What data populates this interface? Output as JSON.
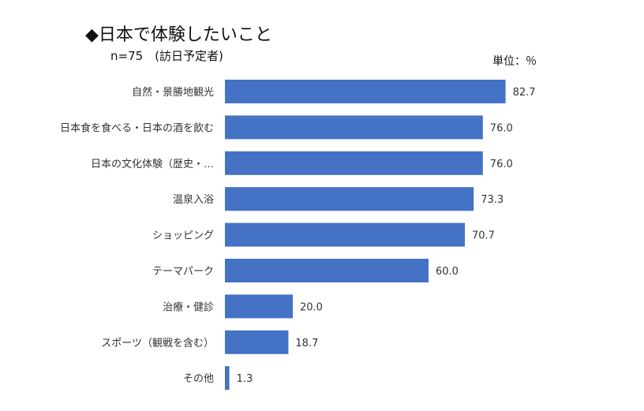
{
  "chart_data": {
    "type": "bar",
    "orientation": "horizontal",
    "title": "◆日本で体験したいこと",
    "subtitle": "n=75　(訪日予定者)",
    "unit": "単位：％",
    "categories": [
      "自然・景勝地観光",
      "日本食を食べる・日本の酒を飲む",
      "日本の文化体験（歴史・…",
      "温泉入浴",
      "ショッピング",
      "テーマパーク",
      "治療・健診",
      "スポーツ（観戦を含む）",
      "その他"
    ],
    "values": [
      82.7,
      76.0,
      76.0,
      73.3,
      70.7,
      60.0,
      20.0,
      18.7,
      1.3
    ],
    "value_labels": [
      "82.7",
      "76.0",
      "76.0",
      "73.3",
      "70.7",
      "60.0",
      "20.0",
      "18.7",
      "1.3"
    ],
    "xlim": [
      0,
      100
    ],
    "bar_color": "#4472c4",
    "grid": false,
    "legend": "none"
  }
}
